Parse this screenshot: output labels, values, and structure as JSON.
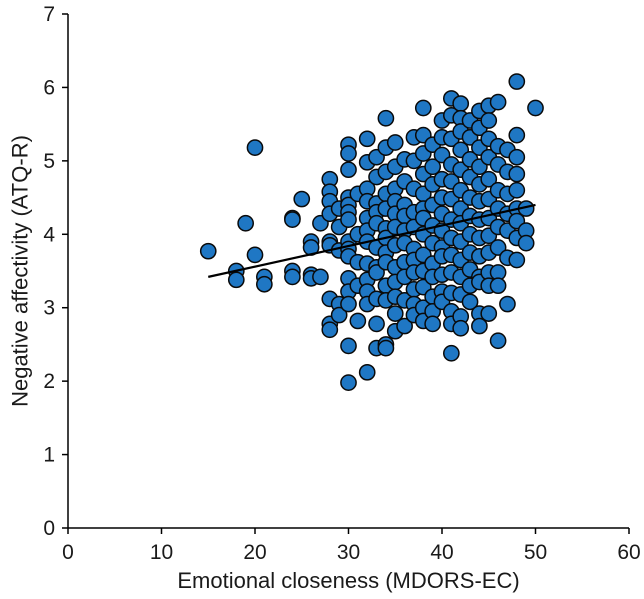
{
  "chart_data": {
    "type": "scatter",
    "title": "",
    "xlabel": "Emotional closeness (MDORS-EC)",
    "ylabel": "Negative affectivity (ATQ-R)",
    "xlim": [
      0,
      60
    ],
    "ylim": [
      0,
      7
    ],
    "xticks": [
      0,
      10,
      20,
      30,
      40,
      50,
      60
    ],
    "yticks": [
      0,
      1,
      2,
      3,
      4,
      5,
      6,
      7
    ],
    "grid": false,
    "marker_color": "#1f77c4",
    "marker_edge_color": "#0a0a0a",
    "trendline": {
      "x": [
        15,
        50
      ],
      "y": [
        3.42,
        4.4
      ]
    },
    "points": [
      [
        15,
        3.77
      ],
      [
        18,
        3.5
      ],
      [
        18,
        3.38
      ],
      [
        19,
        4.15
      ],
      [
        20,
        5.18
      ],
      [
        20,
        3.72
      ],
      [
        21,
        3.42
      ],
      [
        21,
        3.32
      ],
      [
        24,
        4.22
      ],
      [
        24,
        4.2
      ],
      [
        24,
        3.5
      ],
      [
        24,
        3.42
      ],
      [
        25,
        4.48
      ],
      [
        26,
        3.9
      ],
      [
        26,
        3.82
      ],
      [
        26,
        3.45
      ],
      [
        26,
        3.4
      ],
      [
        27,
        4.15
      ],
      [
        27,
        3.42
      ],
      [
        28,
        4.75
      ],
      [
        28,
        4.58
      ],
      [
        28,
        4.45
      ],
      [
        28,
        4.28
      ],
      [
        28,
        3.9
      ],
      [
        28,
        3.85
      ],
      [
        28,
        3.12
      ],
      [
        28,
        2.78
      ],
      [
        28,
        2.7
      ],
      [
        29,
        4.35
      ],
      [
        29,
        4.1
      ],
      [
        29,
        3.78
      ],
      [
        29,
        3.05
      ],
      [
        29,
        2.9
      ],
      [
        30,
        5.22
      ],
      [
        30,
        5.1
      ],
      [
        30,
        4.88
      ],
      [
        30,
        4.5
      ],
      [
        30,
        4.4
      ],
      [
        30,
        4.3
      ],
      [
        30,
        4.2
      ],
      [
        30,
        3.9
      ],
      [
        30,
        3.8
      ],
      [
        30,
        3.7
      ],
      [
        30,
        3.4
      ],
      [
        30,
        3.22
      ],
      [
        30,
        3.05
      ],
      [
        30,
        2.48
      ],
      [
        30,
        1.98
      ],
      [
        31,
        4.55
      ],
      [
        31,
        4.0
      ],
      [
        31,
        3.62
      ],
      [
        31,
        3.3
      ],
      [
        31,
        2.82
      ],
      [
        32,
        5.3
      ],
      [
        32,
        4.98
      ],
      [
        32,
        4.62
      ],
      [
        32,
        4.45
      ],
      [
        32,
        4.22
      ],
      [
        32,
        4.05
      ],
      [
        32,
        3.9
      ],
      [
        32,
        3.6
      ],
      [
        32,
        3.38
      ],
      [
        32,
        3.22
      ],
      [
        32,
        3.05
      ],
      [
        32,
        2.12
      ],
      [
        33,
        5.05
      ],
      [
        33,
        4.78
      ],
      [
        33,
        4.42
      ],
      [
        33,
        4.3
      ],
      [
        33,
        4.15
      ],
      [
        33,
        3.82
      ],
      [
        33,
        3.55
      ],
      [
        33,
        3.48
      ],
      [
        33,
        3.12
      ],
      [
        33,
        2.78
      ],
      [
        33,
        2.45
      ],
      [
        34,
        5.58
      ],
      [
        34,
        5.18
      ],
      [
        34,
        4.85
      ],
      [
        34,
        4.55
      ],
      [
        34,
        4.35
      ],
      [
        34,
        4.08
      ],
      [
        34,
        3.95
      ],
      [
        34,
        3.75
      ],
      [
        34,
        3.62
      ],
      [
        34,
        3.3
      ],
      [
        34,
        3.1
      ],
      [
        34,
        2.5
      ],
      [
        34,
        2.45
      ],
      [
        35,
        5.25
      ],
      [
        35,
        4.92
      ],
      [
        35,
        4.62
      ],
      [
        35,
        4.45
      ],
      [
        35,
        4.28
      ],
      [
        35,
        4.1
      ],
      [
        35,
        3.85
      ],
      [
        35,
        3.55
      ],
      [
        35,
        3.35
      ],
      [
        35,
        3.15
      ],
      [
        35,
        2.92
      ],
      [
        35,
        2.68
      ],
      [
        36,
        5.02
      ],
      [
        36,
        4.72
      ],
      [
        36,
        4.4
      ],
      [
        36,
        4.25
      ],
      [
        36,
        4.05
      ],
      [
        36,
        3.88
      ],
      [
        36,
        3.62
      ],
      [
        36,
        3.42
      ],
      [
        36,
        3.1
      ],
      [
        36,
        2.75
      ],
      [
        37,
        5.32
      ],
      [
        37,
        5.0
      ],
      [
        37,
        4.62
      ],
      [
        37,
        4.3
      ],
      [
        37,
        4.1
      ],
      [
        37,
        3.8
      ],
      [
        37,
        3.65
      ],
      [
        37,
        3.48
      ],
      [
        37,
        3.25
      ],
      [
        37,
        3.05
      ],
      [
        37,
        2.9
      ],
      [
        38,
        5.72
      ],
      [
        38,
        5.35
      ],
      [
        38,
        5.1
      ],
      [
        38,
        4.82
      ],
      [
        38,
        4.55
      ],
      [
        38,
        4.35
      ],
      [
        38,
        4.22
      ],
      [
        38,
        4.0
      ],
      [
        38,
        3.72
      ],
      [
        38,
        3.5
      ],
      [
        38,
        3.28
      ],
      [
        38,
        3.0
      ],
      [
        38,
        2.82
      ],
      [
        39,
        5.22
      ],
      [
        39,
        4.92
      ],
      [
        39,
        4.68
      ],
      [
        39,
        4.4
      ],
      [
        39,
        4.12
      ],
      [
        39,
        3.88
      ],
      [
        39,
        3.6
      ],
      [
        39,
        3.42
      ],
      [
        39,
        3.15
      ],
      [
        39,
        2.95
      ],
      [
        39,
        2.78
      ],
      [
        40,
        5.55
      ],
      [
        40,
        5.32
      ],
      [
        40,
        5.08
      ],
      [
        40,
        4.75
      ],
      [
        40,
        4.5
      ],
      [
        40,
        4.28
      ],
      [
        40,
        4.05
      ],
      [
        40,
        3.82
      ],
      [
        40,
        3.7
      ],
      [
        40,
        3.45
      ],
      [
        40,
        3.22
      ],
      [
        40,
        3.08
      ],
      [
        41,
        5.85
      ],
      [
        41,
        5.62
      ],
      [
        41,
        5.3
      ],
      [
        41,
        4.95
      ],
      [
        41,
        4.72
      ],
      [
        41,
        4.48
      ],
      [
        41,
        4.2
      ],
      [
        41,
        3.95
      ],
      [
        41,
        3.72
      ],
      [
        41,
        3.48
      ],
      [
        41,
        3.2
      ],
      [
        41,
        2.95
      ],
      [
        41,
        2.78
      ],
      [
        41,
        2.38
      ],
      [
        42,
        5.78
      ],
      [
        42,
        5.58
      ],
      [
        42,
        5.4
      ],
      [
        42,
        5.15
      ],
      [
        42,
        4.88
      ],
      [
        42,
        4.6
      ],
      [
        42,
        4.35
      ],
      [
        42,
        4.15
      ],
      [
        42,
        3.9
      ],
      [
        42,
        3.65
      ],
      [
        42,
        3.42
      ],
      [
        42,
        3.18
      ],
      [
        42,
        2.88
      ],
      [
        42,
        2.72
      ],
      [
        43,
        5.55
      ],
      [
        43,
        5.32
      ],
      [
        43,
        5.02
      ],
      [
        43,
        4.78
      ],
      [
        43,
        4.5
      ],
      [
        43,
        4.25
      ],
      [
        43,
        4.0
      ],
      [
        43,
        3.75
      ],
      [
        43,
        3.52
      ],
      [
        43,
        3.3
      ],
      [
        43,
        3.08
      ],
      [
        44,
        5.68
      ],
      [
        44,
        5.45
      ],
      [
        44,
        5.18
      ],
      [
        44,
        4.92
      ],
      [
        44,
        4.68
      ],
      [
        44,
        4.45
      ],
      [
        44,
        4.2
      ],
      [
        44,
        3.95
      ],
      [
        44,
        3.7
      ],
      [
        44,
        3.42
      ],
      [
        44,
        3.35
      ],
      [
        44,
        2.92
      ],
      [
        44,
        2.75
      ],
      [
        45,
        5.75
      ],
      [
        45,
        5.55
      ],
      [
        45,
        5.3
      ],
      [
        45,
        5.05
      ],
      [
        45,
        4.75
      ],
      [
        45,
        4.48
      ],
      [
        45,
        4.22
      ],
      [
        45,
        3.98
      ],
      [
        45,
        3.75
      ],
      [
        45,
        3.48
      ],
      [
        45,
        3.3
      ],
      [
        45,
        2.92
      ],
      [
        46,
        5.8
      ],
      [
        46,
        5.2
      ],
      [
        46,
        4.95
      ],
      [
        46,
        4.6
      ],
      [
        46,
        4.35
      ],
      [
        46,
        4.1
      ],
      [
        46,
        3.82
      ],
      [
        46,
        3.48
      ],
      [
        46,
        3.3
      ],
      [
        46,
        2.55
      ],
      [
        47,
        5.15
      ],
      [
        47,
        4.85
      ],
      [
        47,
        4.55
      ],
      [
        47,
        4.28
      ],
      [
        47,
        4.05
      ],
      [
        47,
        3.68
      ],
      [
        47,
        3.05
      ],
      [
        48,
        6.08
      ],
      [
        48,
        5.35
      ],
      [
        48,
        5.05
      ],
      [
        48,
        4.82
      ],
      [
        48,
        4.6
      ],
      [
        48,
        4.35
      ],
      [
        48,
        4.18
      ],
      [
        48,
        3.95
      ],
      [
        48,
        3.65
      ],
      [
        49,
        4.35
      ],
      [
        49,
        4.05
      ],
      [
        49,
        3.88
      ],
      [
        50,
        5.72
      ]
    ]
  }
}
